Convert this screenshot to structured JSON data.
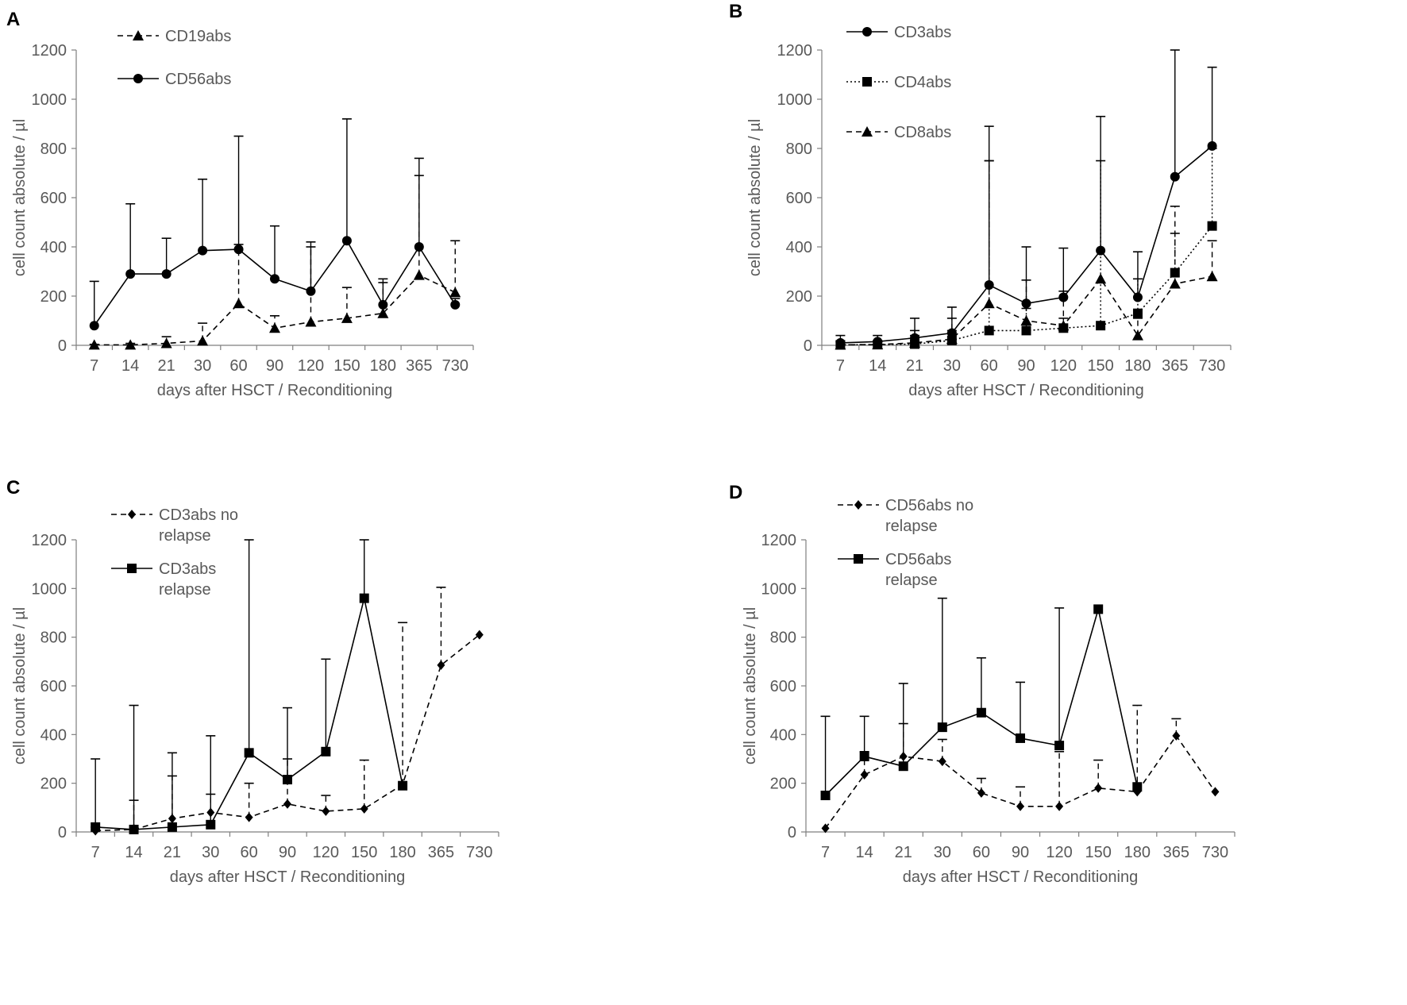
{
  "chart_data": [
    {
      "type": "line",
      "panel": "A",
      "categories": [
        "7",
        "14",
        "21",
        "30",
        "60",
        "90",
        "120",
        "150",
        "180",
        "365",
        "730"
      ],
      "ylabel": "cell count  absolute / µl",
      "xlabel": "days after HSCT / Reconditioning",
      "ylim": [
        0,
        1200
      ],
      "yticks": [
        0,
        200,
        400,
        600,
        800,
        1000,
        1200
      ],
      "series": [
        {
          "name": "CD19abs",
          "style": "dashed",
          "marker": "triangle",
          "values": [
            2,
            2,
            8,
            18,
            170,
            70,
            95,
            110,
            130,
            285,
            215
          ],
          "error": [
            4,
            8,
            35,
            90,
            410,
            120,
            400,
            235,
            255,
            690,
            425
          ]
        },
        {
          "name": "CD56abs",
          "style": "solid",
          "marker": "circle",
          "values": [
            80,
            290,
            290,
            385,
            390,
            270,
            220,
            425,
            165,
            400,
            165
          ],
          "error": [
            260,
            575,
            435,
            675,
            850,
            485,
            420,
            920,
            270,
            760,
            190
          ]
        }
      ]
    },
    {
      "type": "line",
      "panel": "B",
      "categories": [
        "7",
        "14",
        "21",
        "30",
        "60",
        "90",
        "120",
        "150",
        "180",
        "365",
        "730"
      ],
      "ylabel": "cell count  absolute / µl",
      "xlabel": "days after HSCT / Reconditioning",
      "ylim": [
        0,
        1200
      ],
      "yticks": [
        0,
        200,
        400,
        600,
        800,
        1000,
        1200
      ],
      "series": [
        {
          "name": "CD3abs",
          "style": "solid",
          "marker": "circle",
          "values": [
            10,
            15,
            30,
            50,
            245,
            170,
            195,
            385,
            195,
            685,
            810
          ],
          "error": [
            40,
            40,
            110,
            155,
            890,
            400,
            395,
            930,
            380,
            1200,
            1130
          ]
        },
        {
          "name": "CD4abs",
          "style": "dotted",
          "marker": "square",
          "values": [
            2,
            3,
            5,
            20,
            60,
            60,
            70,
            80,
            130,
            295,
            485
          ],
          "error": [
            15,
            15,
            40,
            60,
            750,
            150,
            110,
            750,
            270,
            455,
            800
          ]
        },
        {
          "name": "CD8abs",
          "style": "dashed",
          "marker": "triangle",
          "values": [
            2,
            3,
            10,
            25,
            170,
            100,
            80,
            270,
            40,
            250,
            280
          ],
          "error": [
            15,
            15,
            60,
            110,
            750,
            265,
            220,
            160,
            110,
            565,
            425
          ]
        }
      ]
    },
    {
      "type": "line",
      "panel": "C",
      "categories": [
        "7",
        "14",
        "21",
        "30",
        "60",
        "90",
        "120",
        "150",
        "180",
        "365",
        "730"
      ],
      "ylabel": "cell count  absolute / µl",
      "xlabel": "days after HSCT / Reconditioning",
      "ylim": [
        0,
        1200
      ],
      "yticks": [
        0,
        200,
        400,
        600,
        800,
        1000,
        1200
      ],
      "series": [
        {
          "name_lines": [
            "CD3abs no",
            "relapse"
          ],
          "style": "dashed",
          "marker": "diamond",
          "values": [
            5,
            10,
            55,
            80,
            60,
            115,
            85,
            95,
            195,
            685,
            810
          ],
          "error": [
            20,
            130,
            230,
            155,
            200,
            300,
            150,
            295,
            860,
            1005,
            null
          ]
        },
        {
          "name_lines": [
            "CD3abs",
            "relapse"
          ],
          "style": "solid",
          "marker": "square",
          "values": [
            20,
            10,
            20,
            30,
            325,
            215,
            330,
            960,
            190,
            null,
            null
          ],
          "error": [
            300,
            520,
            325,
            395,
            1200,
            510,
            710,
            1200,
            190,
            null,
            null
          ]
        }
      ]
    },
    {
      "type": "line",
      "panel": "D",
      "categories": [
        "7",
        "14",
        "21",
        "30",
        "60",
        "90",
        "120",
        "150",
        "180",
        "365",
        "730"
      ],
      "ylabel": "cell count  absolute / µl",
      "xlabel": "days after HSCT / Reconditioning",
      "ylim": [
        0,
        1200
      ],
      "yticks": [
        0,
        200,
        400,
        600,
        800,
        1000,
        1200
      ],
      "series": [
        {
          "name_lines": [
            "CD56abs no",
            "relapse"
          ],
          "style": "dashed",
          "marker": "diamond",
          "values": [
            15,
            235,
            310,
            290,
            160,
            105,
            105,
            180,
            165,
            395,
            165
          ],
          "error": [
            10,
            330,
            445,
            380,
            220,
            185,
            330,
            295,
            520,
            465,
            null
          ]
        },
        {
          "name_lines": [
            "CD56abs",
            "relapse"
          ],
          "style": "solid",
          "marker": "square",
          "values": [
            150,
            310,
            270,
            430,
            490,
            385,
            355,
            915,
            185,
            null,
            null
          ],
          "error": [
            475,
            475,
            610,
            960,
            715,
            615,
            920,
            915,
            185,
            null,
            null
          ]
        }
      ]
    }
  ]
}
